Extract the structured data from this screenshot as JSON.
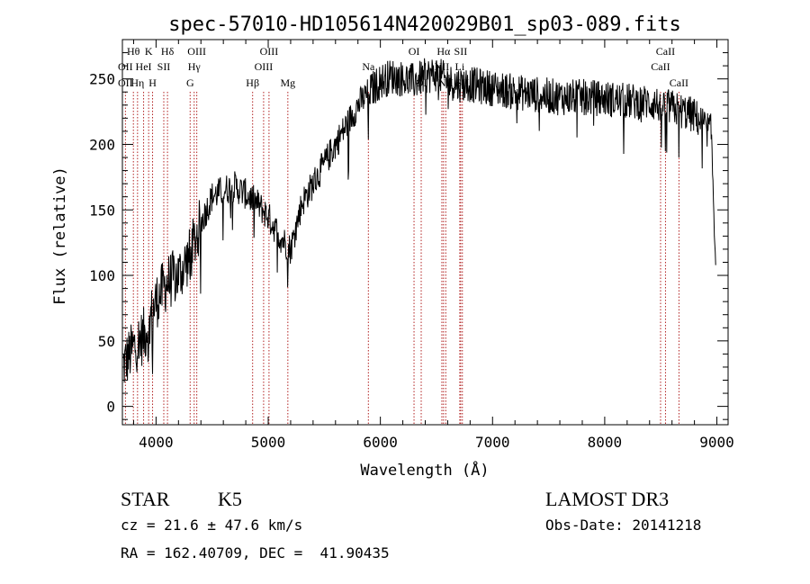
{
  "chart_data": {
    "type": "line",
    "title": "spec-57010-HD105614N420029B01_sp03-089.fits",
    "xlabel": "Wavelength (Å)",
    "ylabel": "Flux (relative)",
    "xlim": [
      3700,
      9100
    ],
    "ylim": [
      -14,
      280
    ],
    "x_ticks": [
      4000,
      5000,
      6000,
      7000,
      8000,
      9000
    ],
    "x_tick_labels": [
      "4000",
      "5000",
      "6000",
      "7000",
      "8000",
      "9000"
    ],
    "y_ticks": [
      0,
      50,
      100,
      150,
      200,
      250
    ],
    "y_tick_labels": [
      "0",
      "50",
      "100",
      "150",
      "200",
      "250"
    ],
    "continuum_anchors": [
      [
        3700,
        30
      ],
      [
        3800,
        45
      ],
      [
        3900,
        55
      ],
      [
        4000,
        80
      ],
      [
        4100,
        95
      ],
      [
        4200,
        100
      ],
      [
        4300,
        115
      ],
      [
        4400,
        140
      ],
      [
        4500,
        160
      ],
      [
        4600,
        165
      ],
      [
        4700,
        168
      ],
      [
        4800,
        162
      ],
      [
        4900,
        155
      ],
      [
        5000,
        145
      ],
      [
        5100,
        130
      ],
      [
        5200,
        120
      ],
      [
        5300,
        155
      ],
      [
        5400,
        170
      ],
      [
        5500,
        185
      ],
      [
        5600,
        200
      ],
      [
        5700,
        215
      ],
      [
        5800,
        230
      ],
      [
        5900,
        240
      ],
      [
        6000,
        248
      ],
      [
        6100,
        252
      ],
      [
        6200,
        250
      ],
      [
        6300,
        248
      ],
      [
        6400,
        252
      ],
      [
        6500,
        254
      ],
      [
        6600,
        248
      ],
      [
        6700,
        246
      ],
      [
        6800,
        246
      ],
      [
        6900,
        244
      ],
      [
        7000,
        243
      ],
      [
        7200,
        240
      ],
      [
        7400,
        238
      ],
      [
        7600,
        236
      ],
      [
        7800,
        236
      ],
      [
        8000,
        235
      ],
      [
        8200,
        233
      ],
      [
        8400,
        232
      ],
      [
        8600,
        228
      ],
      [
        8800,
        222
      ],
      [
        9000,
        205
      ]
    ],
    "spectral_lines": [
      {
        "label": "Hθ",
        "wavelength": 3798,
        "row": 1
      },
      {
        "label": "OII",
        "wavelength": 3727,
        "row": 2
      },
      {
        "label": "OII",
        "wavelength": 3727,
        "row": 3
      },
      {
        "label": "K",
        "wavelength": 3934,
        "row": 1
      },
      {
        "label": "HeI",
        "wavelength": 3889,
        "row": 2
      },
      {
        "label": "Hη",
        "wavelength": 3835,
        "row": 3
      },
      {
        "label": "H",
        "wavelength": 3969,
        "row": 3
      },
      {
        "label": "Hδ",
        "wavelength": 4102,
        "row": 1
      },
      {
        "label": "SII",
        "wavelength": 4069,
        "row": 2
      },
      {
        "label": "OIII",
        "wavelength": 4363,
        "row": 1
      },
      {
        "label": "Hγ",
        "wavelength": 4340,
        "row": 2
      },
      {
        "label": "G",
        "wavelength": 4304,
        "row": 3
      },
      {
        "label": "OIII",
        "wavelength": 5007,
        "row": 1
      },
      {
        "label": "OIII",
        "wavelength": 4959,
        "row": 2
      },
      {
        "label": "Hβ",
        "wavelength": 4861,
        "row": 3
      },
      {
        "label": "Mg",
        "wavelength": 5175,
        "row": 3
      },
      {
        "label": "Na",
        "wavelength": 5893,
        "row": 2
      },
      {
        "label": "OI",
        "wavelength": 6300,
        "row": 1
      },
      {
        "label": "OI",
        "wavelength": 6364,
        "row": 3
      },
      {
        "label": "Hα",
        "wavelength": 6563,
        "row": 1
      },
      {
        "label": "SII",
        "wavelength": 6716,
        "row": 1
      },
      {
        "label": "NII",
        "wavelength": 6548,
        "row": 2
      },
      {
        "label": "Li",
        "wavelength": 6708,
        "row": 2
      },
      {
        "label": "NII",
        "wavelength": 6583,
        "row": 3
      },
      {
        "label": "SII",
        "wavelength": 6731,
        "row": 3
      },
      {
        "label": "CaII",
        "wavelength": 8542,
        "row": 1
      },
      {
        "label": "CaII",
        "wavelength": 8498,
        "row": 2
      },
      {
        "label": "CaII",
        "wavelength": 8662,
        "row": 3
      }
    ]
  },
  "info": {
    "object_class": "STAR",
    "subclass": "K5",
    "survey": "LAMOST DR3",
    "redshift": "cz = 21.6 ± 47.6 km/s",
    "obs_date": "Obs-Date: 20141218",
    "coords": "RA = 162.40709, DEC =  41.90435"
  },
  "colors": {
    "spectrum": "#000000",
    "line_markers": "#b22222",
    "axes": "#000000",
    "background": "#ffffff"
  }
}
